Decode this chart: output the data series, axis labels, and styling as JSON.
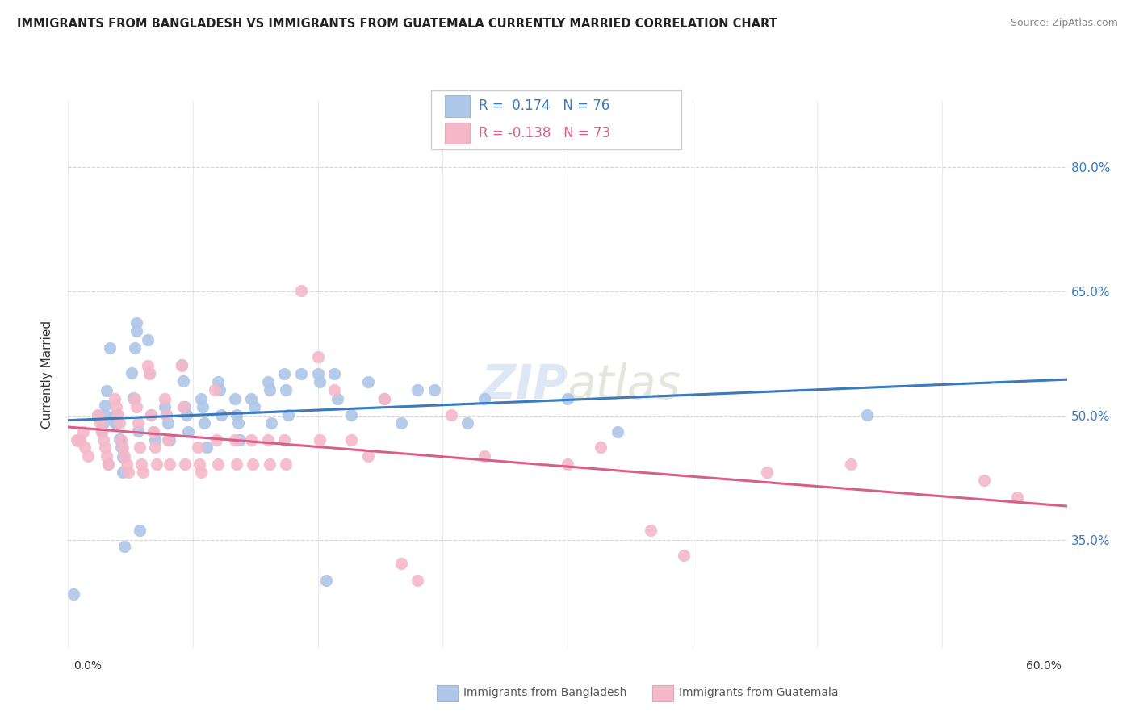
{
  "title": "IMMIGRANTS FROM BANGLADESH VS IMMIGRANTS FROM GUATEMALA CURRENTLY MARRIED CORRELATION CHART",
  "source": "Source: ZipAtlas.com",
  "ylabel": "Currently Married",
  "series1_label": "Immigrants from Bangladesh",
  "series2_label": "Immigrants from Guatemala",
  "legend_r1_text": "R =  0.174   N = 76",
  "legend_r2_text": "R = -0.138   N = 73",
  "series1_color": "#aec6e8",
  "series2_color": "#f4b8c8",
  "trend1_color": "#3a7abf",
  "trend2_color": "#d95f8a",
  "trend1_dash_color": "#9ab8d8",
  "watermark": "ZIPatlas",
  "xmin": 0.0,
  "xmax": 0.6,
  "ymin": 0.22,
  "ymax": 0.88,
  "yticks": [
    0.35,
    0.5,
    0.65,
    0.8
  ],
  "ytick_labels": [
    "35.0%",
    "50.0%",
    "65.0%",
    "80.0%"
  ],
  "bangladesh_x": [
    0.003,
    0.006,
    0.018,
    0.02,
    0.021,
    0.022,
    0.022,
    0.023,
    0.024,
    0.025,
    0.028,
    0.028,
    0.029,
    0.03,
    0.031,
    0.032,
    0.033,
    0.033,
    0.034,
    0.038,
    0.039,
    0.04,
    0.041,
    0.041,
    0.042,
    0.043,
    0.048,
    0.049,
    0.05,
    0.051,
    0.052,
    0.058,
    0.059,
    0.06,
    0.061,
    0.068,
    0.069,
    0.07,
    0.071,
    0.072,
    0.08,
    0.081,
    0.082,
    0.083,
    0.09,
    0.091,
    0.092,
    0.1,
    0.101,
    0.102,
    0.103,
    0.11,
    0.112,
    0.12,
    0.121,
    0.122,
    0.13,
    0.131,
    0.132,
    0.14,
    0.15,
    0.151,
    0.155,
    0.16,
    0.162,
    0.17,
    0.18,
    0.19,
    0.2,
    0.21,
    0.22,
    0.24,
    0.25,
    0.3,
    0.33,
    0.48
  ],
  "bangladesh_y": [
    0.285,
    0.47,
    0.5,
    0.482,
    0.491,
    0.501,
    0.513,
    0.53,
    0.442,
    0.582,
    0.5,
    0.492,
    0.491,
    0.5,
    0.472,
    0.462,
    0.451,
    0.432,
    0.342,
    0.552,
    0.522,
    0.582,
    0.602,
    0.612,
    0.482,
    0.362,
    0.592,
    0.552,
    0.501,
    0.481,
    0.471,
    0.511,
    0.501,
    0.491,
    0.471,
    0.562,
    0.542,
    0.511,
    0.501,
    0.481,
    0.521,
    0.511,
    0.491,
    0.462,
    0.541,
    0.531,
    0.501,
    0.521,
    0.501,
    0.491,
    0.471,
    0.521,
    0.511,
    0.541,
    0.531,
    0.491,
    0.551,
    0.531,
    0.501,
    0.551,
    0.551,
    0.541,
    0.302,
    0.551,
    0.521,
    0.501,
    0.541,
    0.521,
    0.491,
    0.531,
    0.531,
    0.491,
    0.521,
    0.521,
    0.481,
    0.501
  ],
  "guatemala_x": [
    0.005,
    0.007,
    0.009,
    0.01,
    0.012,
    0.018,
    0.019,
    0.02,
    0.021,
    0.022,
    0.023,
    0.024,
    0.028,
    0.029,
    0.03,
    0.031,
    0.032,
    0.033,
    0.034,
    0.035,
    0.036,
    0.04,
    0.041,
    0.042,
    0.043,
    0.044,
    0.045,
    0.048,
    0.049,
    0.05,
    0.051,
    0.052,
    0.053,
    0.058,
    0.059,
    0.06,
    0.061,
    0.068,
    0.069,
    0.07,
    0.078,
    0.079,
    0.08,
    0.088,
    0.089,
    0.09,
    0.1,
    0.101,
    0.11,
    0.111,
    0.12,
    0.121,
    0.13,
    0.131,
    0.14,
    0.15,
    0.151,
    0.16,
    0.17,
    0.18,
    0.19,
    0.2,
    0.21,
    0.23,
    0.25,
    0.3,
    0.32,
    0.35,
    0.37,
    0.42,
    0.47,
    0.55,
    0.57
  ],
  "guatemala_y": [
    0.471,
    0.471,
    0.481,
    0.462,
    0.452,
    0.501,
    0.491,
    0.481,
    0.471,
    0.462,
    0.452,
    0.442,
    0.521,
    0.511,
    0.501,
    0.491,
    0.471,
    0.462,
    0.452,
    0.442,
    0.432,
    0.521,
    0.511,
    0.491,
    0.462,
    0.442,
    0.432,
    0.561,
    0.551,
    0.501,
    0.481,
    0.462,
    0.442,
    0.521,
    0.501,
    0.471,
    0.442,
    0.561,
    0.511,
    0.442,
    0.462,
    0.442,
    0.432,
    0.531,
    0.471,
    0.442,
    0.471,
    0.442,
    0.471,
    0.442,
    0.471,
    0.442,
    0.471,
    0.442,
    0.651,
    0.571,
    0.471,
    0.531,
    0.471,
    0.452,
    0.521,
    0.322,
    0.302,
    0.501,
    0.452,
    0.442,
    0.462,
    0.362,
    0.332,
    0.432,
    0.442,
    0.422,
    0.402
  ]
}
